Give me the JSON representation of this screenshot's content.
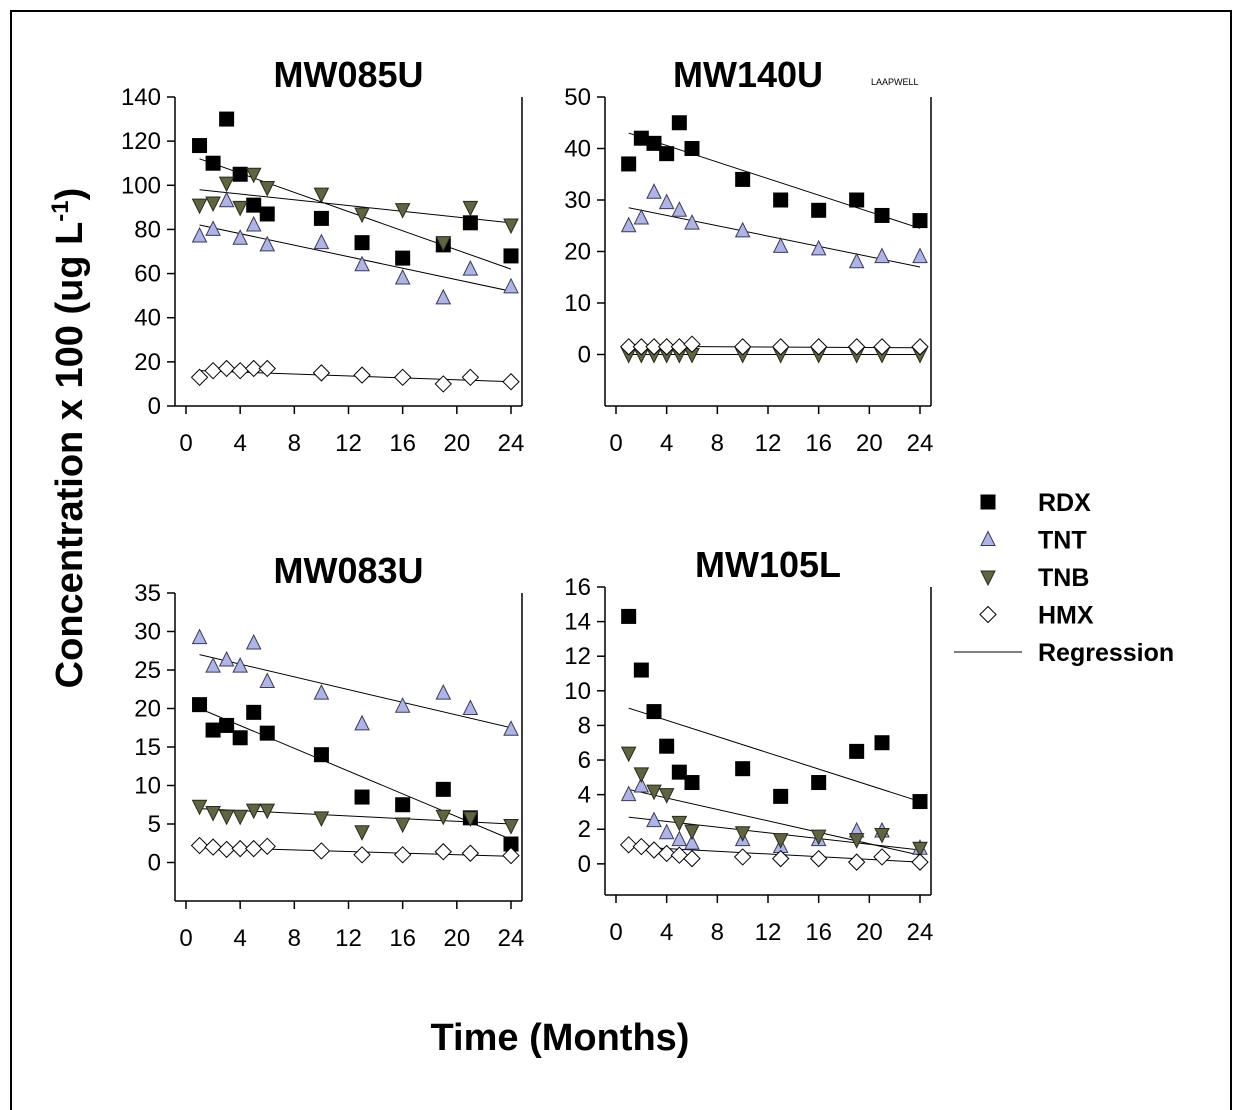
{
  "figure": {
    "ylabel": "Concentration x 100 (ug L",
    "ylabel_sup": "-1",
    "ylabel_tail": ")",
    "xlabel": "Time (Months)"
  },
  "legend": {
    "placement": "right-middle",
    "items": [
      {
        "label": "RDX",
        "series": "RDX"
      },
      {
        "label": "TNT",
        "series": "TNT"
      },
      {
        "label": "TNB",
        "series": "TNB"
      },
      {
        "label": "HMX",
        "series": "HMX"
      },
      {
        "label": "Regression",
        "series": "Regression"
      }
    ]
  },
  "styles": {
    "RDX": {
      "marker": "square",
      "fill": "#000000",
      "stroke": "#000000"
    },
    "TNT": {
      "marker": "triangle-up",
      "fill": "#aeb4e6",
      "stroke": "#3a3a5a"
    },
    "TNB": {
      "marker": "triangle-down",
      "fill": "#5f6443",
      "stroke": "#2a2a1a"
    },
    "HMX": {
      "marker": "diamond",
      "fill": "#ffffff",
      "stroke": "#000000"
    },
    "Regression": {
      "marker": "line",
      "stroke": "#000000"
    }
  },
  "chart_data": [
    {
      "type": "scatter",
      "title": "MW085U",
      "subtitle": "",
      "xlim": [
        0,
        24
      ],
      "ylim": [
        0,
        140
      ],
      "xticks": [
        0,
        4,
        8,
        12,
        16,
        20,
        24
      ],
      "yticks": [
        0,
        20,
        40,
        60,
        80,
        100,
        120,
        140
      ],
      "grid": false,
      "series": [
        {
          "name": "RDX",
          "x": [
            1,
            2,
            3,
            4,
            5,
            6,
            10,
            13,
            16,
            19,
            21,
            24
          ],
          "y": [
            118,
            110,
            130,
            105,
            91,
            87,
            85,
            74,
            67,
            73,
            83,
            68
          ]
        },
        {
          "name": "TNT",
          "x": [
            1,
            2,
            3,
            4,
            5,
            6,
            10,
            13,
            16,
            19,
            21,
            24
          ],
          "y": [
            77,
            80,
            93,
            76,
            82,
            73,
            74,
            64,
            58,
            49,
            62,
            54
          ]
        },
        {
          "name": "TNB",
          "x": [
            1,
            2,
            3,
            4,
            5,
            6,
            10,
            13,
            16,
            19,
            21,
            24
          ],
          "y": [
            91,
            92,
            101,
            90,
            105,
            99,
            96,
            87,
            89,
            74,
            90,
            82
          ]
        },
        {
          "name": "HMX",
          "x": [
            1,
            2,
            3,
            4,
            5,
            6,
            10,
            13,
            16,
            19,
            21,
            24
          ],
          "y": [
            13,
            16,
            17,
            16,
            17,
            17,
            15,
            14,
            13,
            10,
            13,
            11
          ]
        }
      ],
      "regressions": [
        {
          "series": "RDX",
          "x": [
            1,
            24
          ],
          "y": [
            112,
            62
          ]
        },
        {
          "series": "TNT",
          "x": [
            1,
            24
          ],
          "y": [
            82,
            52
          ]
        },
        {
          "series": "TNB",
          "x": [
            1,
            24
          ],
          "y": [
            98,
            83
          ]
        },
        {
          "series": "HMX",
          "x": [
            1,
            24
          ],
          "y": [
            16,
            11
          ]
        }
      ]
    },
    {
      "type": "scatter",
      "title": "MW140U",
      "subtitle": "LAAPWELL",
      "xlim": [
        0,
        24
      ],
      "ylim": [
        -10,
        50
      ],
      "xticks": [
        0,
        4,
        8,
        12,
        16,
        20,
        24
      ],
      "yticks": [
        0,
        10,
        20,
        30,
        40,
        50
      ],
      "grid": false,
      "series": [
        {
          "name": "RDX",
          "x": [
            1,
            2,
            3,
            4,
            5,
            6,
            10,
            13,
            16,
            19,
            21,
            24
          ],
          "y": [
            37,
            42,
            41,
            39,
            45,
            40,
            34,
            30,
            28,
            30,
            27,
            26
          ]
        },
        {
          "name": "TNT",
          "x": [
            1,
            2,
            3,
            4,
            5,
            6,
            10,
            13,
            16,
            19,
            21,
            24
          ],
          "y": [
            25,
            26.5,
            31.5,
            29.5,
            28,
            25.5,
            24,
            21,
            20.5,
            18,
            19,
            19
          ]
        },
        {
          "name": "TNB",
          "x": [
            1,
            2,
            3,
            4,
            5,
            6,
            10,
            13,
            16,
            19,
            21,
            24
          ],
          "y": [
            0,
            0,
            0,
            0,
            0,
            0,
            0,
            0,
            0,
            0,
            0,
            0
          ]
        },
        {
          "name": "HMX",
          "x": [
            1,
            2,
            3,
            4,
            5,
            6,
            10,
            13,
            16,
            19,
            21,
            24
          ],
          "y": [
            1.5,
            1.5,
            1.5,
            1.5,
            1.5,
            2,
            1.5,
            1.5,
            1.5,
            1.5,
            1.5,
            1.5
          ]
        }
      ],
      "regressions": [
        {
          "series": "RDX",
          "x": [
            1,
            24
          ],
          "y": [
            43,
            24.5
          ]
        },
        {
          "series": "TNT",
          "x": [
            1,
            24
          ],
          "y": [
            28.5,
            17
          ]
        },
        {
          "series": "TNB",
          "x": [
            1,
            24
          ],
          "y": [
            0,
            0
          ]
        },
        {
          "series": "HMX",
          "x": [
            1,
            24
          ],
          "y": [
            1.6,
            1.3
          ]
        }
      ]
    },
    {
      "type": "scatter",
      "title": "MW083U",
      "subtitle": "",
      "xlim": [
        0,
        24
      ],
      "ylim": [
        -5,
        35
      ],
      "xticks": [
        0,
        4,
        8,
        12,
        16,
        20,
        24
      ],
      "yticks": [
        0,
        5,
        10,
        15,
        20,
        25,
        30,
        35
      ],
      "grid": false,
      "series": [
        {
          "name": "RDX",
          "x": [
            1,
            2,
            3,
            4,
            5,
            6,
            10,
            13,
            16,
            19,
            21,
            24
          ],
          "y": [
            20.5,
            17.2,
            17.8,
            16.2,
            19.5,
            16.8,
            14,
            8.5,
            7.5,
            9.5,
            5.8,
            2.4
          ]
        },
        {
          "name": "TNT",
          "x": [
            1,
            2,
            3,
            4,
            5,
            6,
            10,
            13,
            16,
            19,
            21,
            24
          ],
          "y": [
            29.2,
            25.5,
            26.3,
            25.5,
            28.5,
            23.5,
            22,
            18,
            20.3,
            22,
            20,
            17.3
          ]
        },
        {
          "name": "TNB",
          "x": [
            1,
            2,
            3,
            4,
            5,
            6,
            10,
            13,
            16,
            19,
            21,
            24
          ],
          "y": [
            7.3,
            6.5,
            6,
            6,
            6.8,
            6.8,
            5.8,
            4,
            5,
            6,
            5.8,
            4.8
          ]
        },
        {
          "name": "HMX",
          "x": [
            1,
            2,
            3,
            4,
            5,
            6,
            10,
            13,
            16,
            19,
            21,
            24
          ],
          "y": [
            2.2,
            2,
            1.7,
            1.8,
            1.8,
            2.1,
            1.5,
            1,
            1,
            1.4,
            1.2,
            0.9
          ]
        }
      ],
      "regressions": [
        {
          "series": "RDX",
          "x": [
            1,
            24
          ],
          "y": [
            20,
            3
          ]
        },
        {
          "series": "TNT",
          "x": [
            1,
            24
          ],
          "y": [
            27,
            17.5
          ]
        },
        {
          "series": "TNB",
          "x": [
            1,
            24
          ],
          "y": [
            7,
            5
          ]
        },
        {
          "series": "HMX",
          "x": [
            1,
            24
          ],
          "y": [
            2,
            0.8
          ]
        }
      ]
    },
    {
      "type": "scatter",
      "title": "MW105L",
      "subtitle": "",
      "xlim": [
        0,
        24
      ],
      "ylim": [
        -1.8,
        16
      ],
      "xticks": [
        0,
        4,
        8,
        12,
        16,
        20,
        24
      ],
      "yticks": [
        0,
        2,
        4,
        6,
        8,
        10,
        12,
        14,
        16
      ],
      "grid": false,
      "series": [
        {
          "name": "RDX",
          "x": [
            1,
            2,
            3,
            4,
            5,
            6,
            10,
            13,
            16,
            19,
            21,
            24
          ],
          "y": [
            14.3,
            11.2,
            8.8,
            6.8,
            5.3,
            4.7,
            5.5,
            3.9,
            4.7,
            6.5,
            7,
            3.6
          ]
        },
        {
          "name": "TNT",
          "x": [
            1,
            2,
            3,
            4,
            5,
            6,
            10,
            13,
            16,
            19,
            21,
            24
          ],
          "y": [
            4,
            4.5,
            2.5,
            1.8,
            1.4,
            1.2,
            1.4,
            1,
            1.4,
            1.9,
            1.9,
            0.9
          ]
        },
        {
          "name": "TNB",
          "x": [
            1,
            2,
            3,
            4,
            5,
            6,
            10,
            13,
            16,
            19,
            21,
            24
          ],
          "y": [
            6.4,
            5.2,
            4.2,
            4,
            2.4,
            1.9,
            1.8,
            1.4,
            1.6,
            1.4,
            1.7,
            0.9
          ]
        },
        {
          "name": "HMX",
          "x": [
            1,
            2,
            3,
            4,
            5,
            6,
            10,
            13,
            16,
            19,
            21,
            24
          ],
          "y": [
            1.1,
            1,
            0.8,
            0.6,
            0.5,
            0.3,
            0.4,
            0.3,
            0.3,
            0.1,
            0.4,
            0.1
          ]
        }
      ],
      "regressions": [
        {
          "series": "RDX",
          "x": [
            1,
            24
          ],
          "y": [
            9,
            3.6
          ]
        },
        {
          "series": "TNT",
          "x": [
            1,
            24
          ],
          "y": [
            2.7,
            0.8
          ]
        },
        {
          "series": "TNB",
          "x": [
            1,
            24
          ],
          "y": [
            4.3,
            0.5
          ]
        },
        {
          "series": "HMX",
          "x": [
            1,
            24
          ],
          "y": [
            1,
            0.1
          ]
        }
      ]
    }
  ]
}
